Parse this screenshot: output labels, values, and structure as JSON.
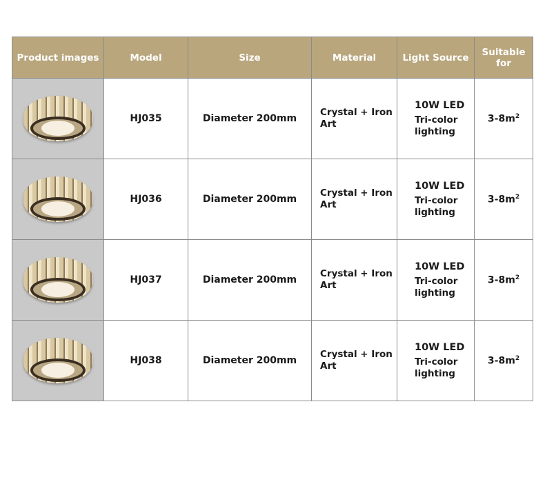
{
  "headers": {
    "image": "Product images",
    "model": "Model",
    "size": "Size",
    "material": "Material",
    "light": "Light Source",
    "suitable": "Suitable for"
  },
  "rows": [
    {
      "model": "HJ035",
      "size": "Diameter 200mm",
      "material": "Crystal + Iron Art",
      "power": "10W LED",
      "lighting": "Tri-color lighting",
      "area": "3-8m",
      "area_sup": "2"
    },
    {
      "model": "HJ036",
      "size": "Diameter 200mm",
      "material": "Crystal + Iron Art",
      "power": "10W LED",
      "lighting": "Tri-color lighting",
      "area": "3-8m",
      "area_sup": "2"
    },
    {
      "model": "HJ037",
      "size": "Diameter 200mm",
      "material": "Crystal + Iron Art",
      "power": "10W LED",
      "lighting": "Tri-color lighting",
      "area": "3-8m",
      "area_sup": "2"
    },
    {
      "model": "HJ038",
      "size": "Diameter 200mm",
      "material": "Crystal + Iron Art",
      "power": "10W LED",
      "lighting": "Tri-color lighting",
      "area": "3-8m",
      "area_sup": "2"
    }
  ],
  "colors": {
    "header_bg": "#b9a67d",
    "image_bg": "#c9c9c9",
    "grid": "#8a8a8a"
  }
}
